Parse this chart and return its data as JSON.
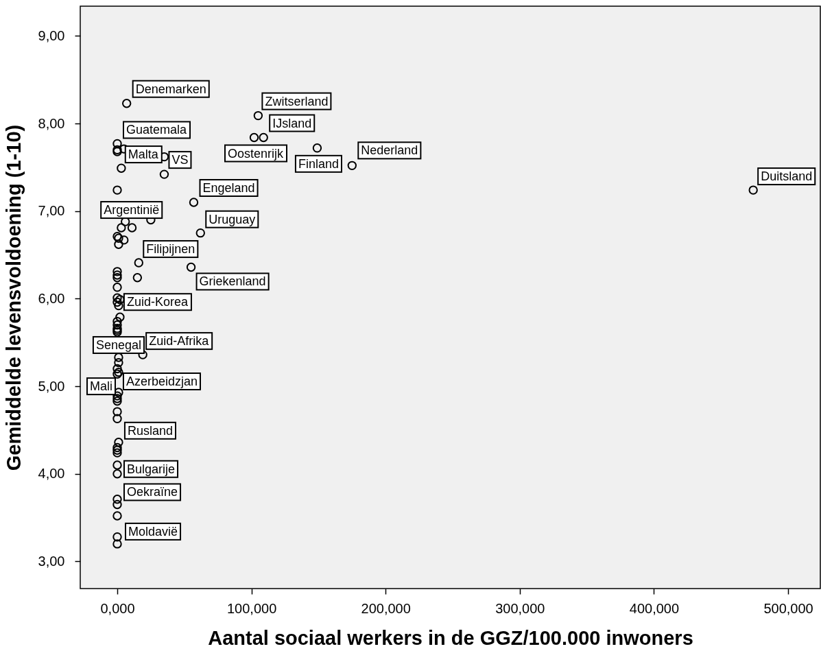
{
  "chart_data": {
    "type": "scatter",
    "xlabel": "Aantal sociaal werkers in de GGZ/100.000 inwoners",
    "ylabel": "Gemiddelde levensvoldoening (1-10)",
    "xlim": [
      -27.6,
      524
    ],
    "ylim": [
      2.69,
      9.34
    ],
    "xticks": [
      {
        "value": 0,
        "label": "0,000"
      },
      {
        "value": 100,
        "label": "100,000"
      },
      {
        "value": 200,
        "label": "200,000"
      },
      {
        "value": 300,
        "label": "300,000"
      },
      {
        "value": 400,
        "label": "400,000"
      },
      {
        "value": 500,
        "label": "500,000"
      }
    ],
    "yticks": [
      {
        "value": 3,
        "label": "3,00"
      },
      {
        "value": 4,
        "label": "4,00"
      },
      {
        "value": 5,
        "label": "5,00"
      },
      {
        "value": 6,
        "label": "6,00"
      },
      {
        "value": 7,
        "label": "7,00"
      },
      {
        "value": 8,
        "label": "8,00"
      },
      {
        "value": 9,
        "label": "9,00"
      }
    ],
    "marker": "circle",
    "x": [
      7,
      0,
      5,
      0,
      0,
      35,
      3,
      35,
      0,
      57,
      25,
      6,
      3,
      11,
      0,
      1,
      5,
      1,
      62,
      16,
      55,
      15,
      0,
      0,
      0,
      0,
      0,
      2,
      0,
      1,
      2,
      0,
      0,
      0,
      0,
      0,
      19,
      1,
      1,
      0,
      1,
      0,
      1,
      0,
      0,
      0,
      0,
      0,
      1,
      0,
      0,
      0,
      0,
      0,
      0,
      0,
      0,
      0,
      0,
      105,
      109,
      102,
      149,
      175,
      474
    ],
    "series": [
      {
        "color": "#000000",
        "values": [
          8.23,
          7.77,
          7.71,
          7.7,
          7.68,
          7.62,
          7.49,
          7.42,
          7.24,
          7.1,
          6.9,
          6.88,
          6.81,
          6.81,
          6.71,
          6.69,
          6.67,
          6.62,
          6.75,
          6.41,
          6.36,
          6.24,
          6.31,
          6.27,
          6.24,
          6.13,
          6.01,
          5.99,
          5.96,
          5.92,
          5.79,
          5.74,
          5.7,
          5.66,
          5.64,
          5.62,
          5.36,
          5.33,
          5.27,
          5.2,
          5.16,
          5.14,
          4.93,
          4.89,
          4.86,
          4.83,
          4.71,
          4.63,
          4.36,
          4.3,
          4.27,
          4.24,
          4.1,
          4.0,
          3.71,
          3.65,
          3.52,
          3.28,
          3.2,
          8.09,
          7.84,
          7.84,
          7.72,
          7.52,
          7.24
        ]
      }
    ],
    "annotations": [
      {
        "text": "Denemarken",
        "x": 7,
        "y": 8.23
      },
      {
        "text": "Guatemala",
        "x": 0,
        "y": 7.77
      },
      {
        "text": "Malta",
        "x": 5,
        "y": 7.71
      },
      {
        "text": "VS",
        "x": 35,
        "y": 7.42
      },
      {
        "text": "Engeland",
        "x": 57,
        "y": 7.1
      },
      {
        "text": "Argentinië",
        "x": 6,
        "y": 6.88
      },
      {
        "text": "Uruguay",
        "x": 62,
        "y": 6.75
      },
      {
        "text": "Filipijnen",
        "x": 16,
        "y": 6.41
      },
      {
        "text": "Griekenland",
        "x": 55,
        "y": 6.36
      },
      {
        "text": "Zuid-Korea",
        "x": 2,
        "y": 5.79
      },
      {
        "text": "Senegal",
        "x": 1,
        "y": 5.33
      },
      {
        "text": "Zuid-Afrika",
        "x": 19,
        "y": 5.36
      },
      {
        "text": "Azerbeidzjan",
        "x": 1,
        "y": 4.93
      },
      {
        "text": "Mali",
        "x": 0,
        "y": 4.89
      },
      {
        "text": "Rusland",
        "x": 1,
        "y": 4.36
      },
      {
        "text": "Bulgarije",
        "x": 0,
        "y": 4.0
      },
      {
        "text": "Oekraïne",
        "x": 0,
        "y": 3.65
      },
      {
        "text": "Moldavië",
        "x": 0,
        "y": 3.2
      },
      {
        "text": "Zwitserland",
        "x": 105,
        "y": 8.09
      },
      {
        "text": "IJsland",
        "x": 109,
        "y": 7.84
      },
      {
        "text": "Oostenrijk",
        "x": 102,
        "y": 7.84
      },
      {
        "text": "Finland",
        "x": 149,
        "y": 7.72
      },
      {
        "text": "Nederland",
        "x": 175,
        "y": 7.52
      },
      {
        "text": "Duitsland",
        "x": 474,
        "y": 7.24
      }
    ]
  }
}
